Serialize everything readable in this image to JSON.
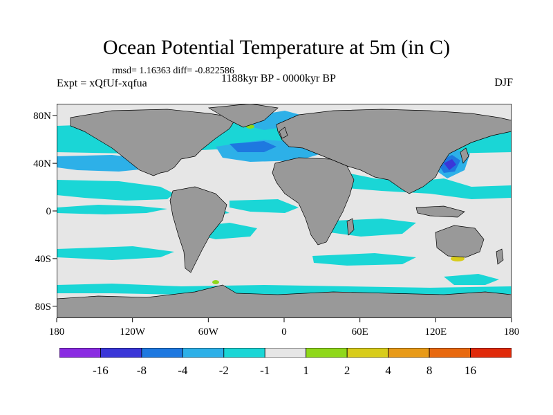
{
  "header": {
    "title": "Ocean Potential Temperature at 5m (in C)",
    "stats": "rmsd= 1.16363 diff= -0.822586",
    "expt": "Expt = xQfUf-xqfua",
    "period": "1188kyr BP - 0000kyr BP",
    "season": "DJF"
  },
  "axes": {
    "y_ticks": [
      {
        "label": "80N",
        "value": 80
      },
      {
        "label": "40N",
        "value": 40
      },
      {
        "label": "0",
        "value": 0
      },
      {
        "label": "40S",
        "value": -40
      },
      {
        "label": "80S",
        "value": -80
      }
    ],
    "x_ticks": [
      {
        "label": "180",
        "value": -180
      },
      {
        "label": "120W",
        "value": -120
      },
      {
        "label": "60W",
        "value": -60
      },
      {
        "label": "0",
        "value": 0
      },
      {
        "label": "60E",
        "value": 60
      },
      {
        "label": "120E",
        "value": 120
      },
      {
        "label": "180",
        "value": 180
      }
    ],
    "lon_range": [
      -180,
      180
    ],
    "lat_range": [
      -90,
      90
    ]
  },
  "colorbar": {
    "labels": [
      "-16",
      "-8",
      "-4",
      "-2",
      "-1",
      "1",
      "2",
      "4",
      "8",
      "16"
    ],
    "colors": [
      "#8a2be2",
      "#3a36d8",
      "#1e78e0",
      "#2db0e8",
      "#1ad6d6",
      "#e6e6e6",
      "#8fd81a",
      "#d8cc1a",
      "#e89a18",
      "#e8680e",
      "#e02a0a"
    ]
  },
  "colors": {
    "land": "#999999",
    "ocean_neutral": "#e6e6e6",
    "cool1": "#1ad6d6",
    "cool2": "#2db0e8",
    "cool3": "#1e78e0",
    "cool4": "#3a36d8",
    "warm1": "#8fd81a",
    "warm2": "#d8cc1a"
  }
}
